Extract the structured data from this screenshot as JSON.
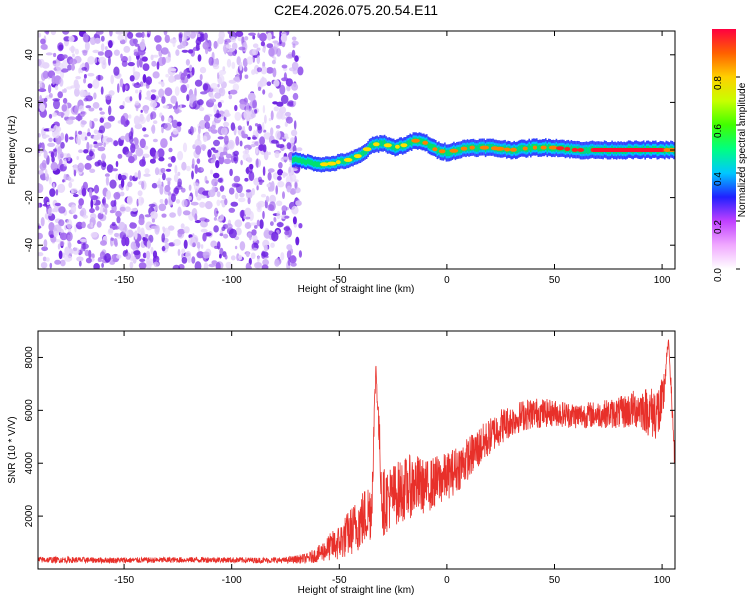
{
  "figure_title": "C2E4.2026.075.20.54.E11",
  "colors": {
    "axis": "#000000",
    "snr_line": "#e8302a",
    "noise_light": "#d9c2f5",
    "noise_dark": "#6a1ee0"
  },
  "chart_data": [
    {
      "type": "heatmap",
      "name": "spectrogram",
      "title": "C2E4.2026.075.20.54.E11",
      "xlabel": "Height of straight line (km)",
      "ylabel": "Frequency (Hz)",
      "xlim": [
        -190,
        106
      ],
      "ylim": [
        -50,
        50
      ],
      "xticks": [
        -150,
        -100,
        -50,
        0,
        50,
        100
      ],
      "yticks": [
        -40,
        -20,
        0,
        20,
        40
      ],
      "grid": false,
      "noise_region_x": [
        -190,
        -68
      ],
      "signal_ridge": {
        "x": [
          -72,
          -65,
          -60,
          -55,
          -50,
          -45,
          -40,
          -35,
          -30,
          -25,
          -20,
          -15,
          -10,
          -5,
          0,
          5,
          10,
          20,
          30,
          40,
          50,
          60,
          70,
          80,
          90,
          100,
          106
        ],
        "y": [
          -4,
          -5,
          -6,
          -6,
          -5,
          -4,
          -2,
          2,
          3,
          1,
          2,
          4,
          3,
          0,
          -1,
          0,
          1,
          1,
          0,
          1,
          1,
          0,
          0,
          0,
          0,
          0,
          0
        ],
        "amplitude": [
          0.3,
          0.35,
          0.4,
          0.45,
          0.5,
          0.55,
          0.6,
          0.7,
          0.7,
          0.75,
          0.8,
          0.8,
          0.85,
          0.85,
          0.9,
          0.9,
          0.85,
          0.9,
          0.9,
          0.9,
          0.9,
          0.95,
          0.95,
          0.95,
          0.95,
          0.9,
          0.9
        ]
      },
      "colorbar": {
        "label": "Normalized spectral amplitude",
        "range": [
          0.0,
          1.0
        ],
        "ticks": [
          0.0,
          0.2,
          0.4,
          0.6,
          0.8
        ],
        "colors": [
          "#ffffff",
          "#f0a8ff",
          "#c040ff",
          "#2020ff",
          "#00c8ff",
          "#00ff80",
          "#40ff00",
          "#c8ff00",
          "#ffd000",
          "#ff6000",
          "#ff0040"
        ]
      }
    },
    {
      "type": "line",
      "name": "snr",
      "xlabel": "Height of straight line (km)",
      "ylabel": "SNR (10 * V/V)",
      "xlim": [
        -190,
        106
      ],
      "ylim": [
        0,
        9000
      ],
      "xticks": [
        -150,
        -100,
        -50,
        0,
        50,
        100
      ],
      "yticks": [
        2000,
        4000,
        6000,
        8000
      ],
      "grid": false,
      "series": [
        {
          "x": [
            -190,
            -170,
            -150,
            -130,
            -110,
            -90,
            -75,
            -65,
            -60,
            -55,
            -50,
            -45,
            -40,
            -35,
            -33,
            -30,
            -25,
            -20,
            -15,
            -10,
            -5,
            0,
            5,
            10,
            15,
            20,
            25,
            30,
            35,
            40,
            50,
            60,
            70,
            80,
            90,
            95,
            100,
            103,
            106
          ],
          "values": [
            350,
            340,
            330,
            340,
            350,
            330,
            330,
            400,
            550,
            800,
            1000,
            1400,
            1800,
            2300,
            7700,
            2500,
            2800,
            3000,
            3200,
            3100,
            3300,
            3500,
            3800,
            4200,
            4600,
            5000,
            5400,
            5600,
            5800,
            5900,
            5900,
            5800,
            5850,
            5900,
            6100,
            5900,
            6000,
            8700,
            4000
          ],
          "noise": [
            120,
            110,
            110,
            110,
            110,
            110,
            110,
            200,
            300,
            500,
            700,
            900,
            1100,
            1200,
            300,
            1300,
            1200,
            1200,
            1200,
            1000,
            1000,
            900,
            900,
            800,
            800,
            700,
            700,
            600,
            600,
            600,
            500,
            500,
            500,
            600,
            800,
            1000,
            1200,
            0,
            800
          ]
        }
      ]
    }
  ]
}
